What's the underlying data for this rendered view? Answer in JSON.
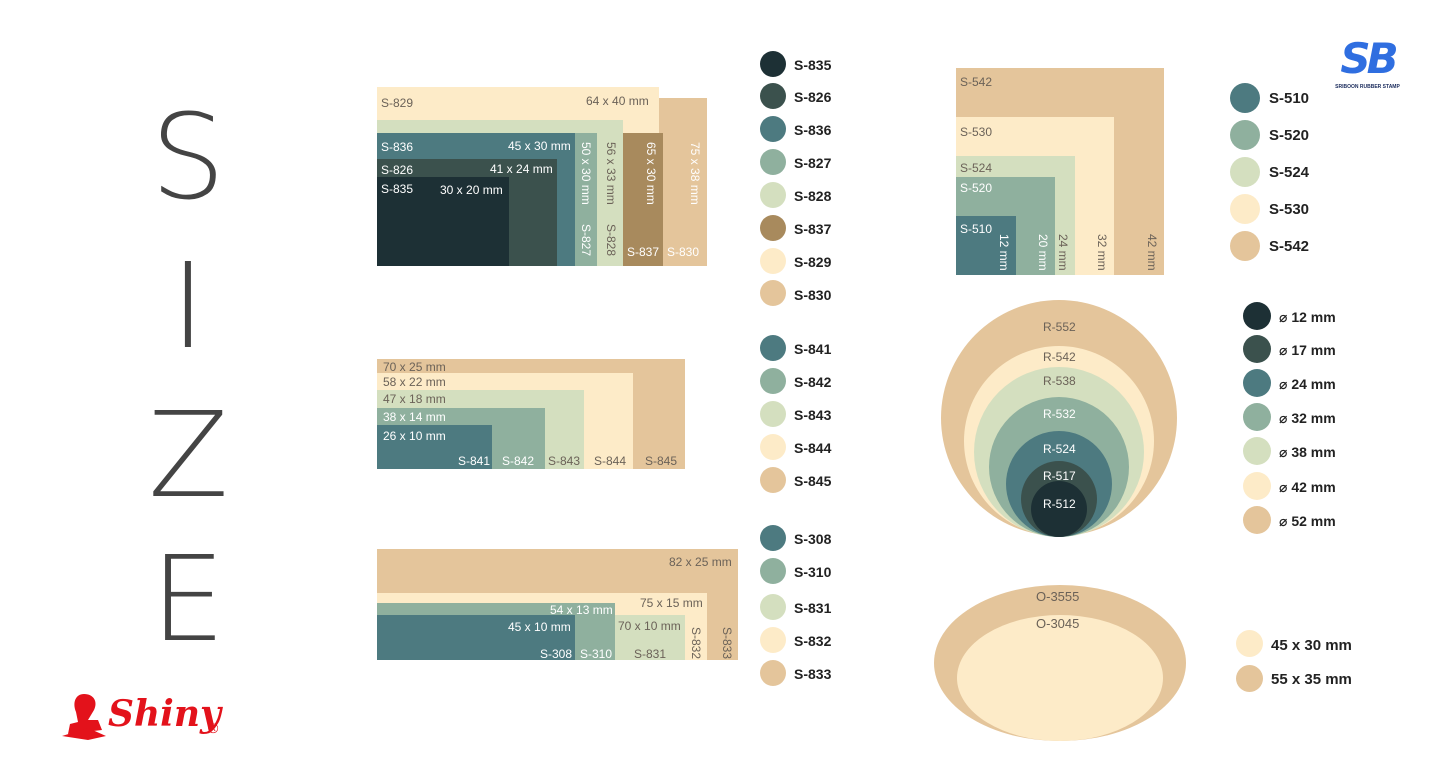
{
  "title_letters": [
    "S",
    "I",
    "Z",
    "E"
  ],
  "palette": {
    "c1": "#1d3035",
    "c2": "#3b514d",
    "c3": "#4d7a80",
    "c4": "#8fb09e",
    "c5": "#d4dfbf",
    "c6": "#a88a5d",
    "c7": "#fdebc8",
    "c8": "#e4c59b"
  },
  "group1": {
    "blocks": {
      "s829": {
        "name": "S-829",
        "size": "64 x 40 mm"
      },
      "s836": {
        "name": "S-836",
        "size": "45 x 30 mm"
      },
      "s826": {
        "name": "S-826",
        "size": "41 x 24 mm"
      },
      "s835": {
        "name": "S-835",
        "size": "30 x 20 mm"
      },
      "s827": {
        "name": "S-827",
        "size": "50 x 30 mm"
      },
      "s828": {
        "name": "S-828",
        "size": "56 x 33 mm"
      },
      "s837": {
        "name": "S-837",
        "size": "65 x 30 mm"
      },
      "s830": {
        "name": "S-830",
        "size": "75 x 38 mm"
      }
    },
    "legend": [
      "S-835",
      "S-826",
      "S-836",
      "S-827",
      "S-828",
      "S-837",
      "S-829",
      "S-830"
    ]
  },
  "group2": {
    "sizes": [
      "70 x 25 mm",
      "58 x 22 mm",
      "47 x 18 mm",
      "38 x 14 mm",
      "26 x 10 mm"
    ],
    "names": [
      "S-841",
      "S-842",
      "S-843",
      "S-844",
      "S-845"
    ],
    "legend": [
      "S-841",
      "S-842",
      "S-843",
      "S-844",
      "S-845"
    ]
  },
  "group3": {
    "sizes": {
      "s833": "82 x 25 mm",
      "s832": "75 x 15 mm",
      "s310": "54 x 13 mm",
      "s308": "45 x 10 mm",
      "s831": "70 x 10 mm"
    },
    "names": {
      "s308": "S-308",
      "s310": "S-310",
      "s831": "S-831",
      "s832": "S-832",
      "s833": "S-833"
    },
    "legend": [
      "S-308",
      "S-310",
      "S-831",
      "S-832",
      "S-833"
    ]
  },
  "squares": {
    "names": {
      "s542": "S-542",
      "s530": "S-530",
      "s524": "S-524",
      "s520": "S-520",
      "s510": "S-510"
    },
    "sizes": {
      "s510": "12 mm",
      "s520": "20 mm",
      "s524": "24 mm",
      "s530": "32 mm",
      "s542": "42 mm"
    },
    "legend": [
      "S-510",
      "S-520",
      "S-524",
      "S-530",
      "S-542"
    ]
  },
  "rounds": {
    "names": [
      "R-552",
      "R-542",
      "R-538",
      "R-532",
      "R-524",
      "R-517",
      "R-512"
    ],
    "legend": [
      "⌀ 12 mm",
      "⌀ 17 mm",
      "⌀ 24 mm",
      "⌀ 32 mm",
      "⌀ 38 mm",
      "⌀ 42 mm",
      "⌀ 52 mm"
    ]
  },
  "ovals": {
    "names": [
      "O-3555",
      "O-3045"
    ],
    "legend": [
      "45 x 30 mm",
      "55 x 35 mm"
    ]
  },
  "logo": {
    "initials": "SB",
    "tagline": "SRIBOON RUBBER STAMP"
  },
  "brand": {
    "name": "Shiny",
    "mark": "®"
  }
}
